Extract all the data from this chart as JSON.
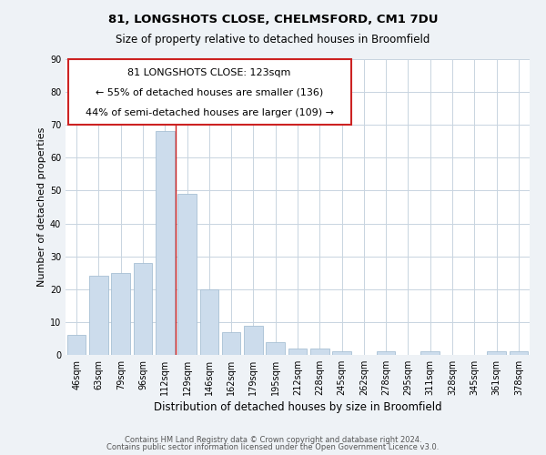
{
  "title": "81, LONGSHOTS CLOSE, CHELMSFORD, CM1 7DU",
  "subtitle": "Size of property relative to detached houses in Broomfield",
  "xlabel": "Distribution of detached houses by size in Broomfield",
  "ylabel": "Number of detached properties",
  "footer_line1": "Contains HM Land Registry data © Crown copyright and database right 2024.",
  "footer_line2": "Contains public sector information licensed under the Open Government Licence v3.0.",
  "bar_labels": [
    "46sqm",
    "63sqm",
    "79sqm",
    "96sqm",
    "112sqm",
    "129sqm",
    "146sqm",
    "162sqm",
    "179sqm",
    "195sqm",
    "212sqm",
    "228sqm",
    "245sqm",
    "262sqm",
    "278sqm",
    "295sqm",
    "311sqm",
    "328sqm",
    "345sqm",
    "361sqm",
    "378sqm"
  ],
  "bar_values": [
    6,
    24,
    25,
    28,
    68,
    49,
    20,
    7,
    9,
    4,
    2,
    2,
    1,
    0,
    1,
    0,
    1,
    0,
    0,
    1,
    1
  ],
  "bar_color": "#ccdcec",
  "bar_edge_color": "#a8c0d4",
  "vline_x_index": 4.5,
  "vline_color": "#cc2222",
  "ylim": [
    0,
    90
  ],
  "yticks": [
    0,
    10,
    20,
    30,
    40,
    50,
    60,
    70,
    80,
    90
  ],
  "annotation_text_line1": "81 LONGSHOTS CLOSE: 123sqm",
  "annotation_text_line2": "← 55% of detached houses are smaller (136)",
  "annotation_text_line3": "44% of semi-detached houses are larger (109) →",
  "background_color": "#eef2f6",
  "plot_bg_color": "#ffffff",
  "grid_color": "#c8d4e0",
  "title_fontsize": 9.5,
  "subtitle_fontsize": 8.5,
  "ylabel_fontsize": 8,
  "xlabel_fontsize": 8.5,
  "tick_fontsize": 7,
  "annotation_fontsize": 8,
  "footer_fontsize": 6
}
